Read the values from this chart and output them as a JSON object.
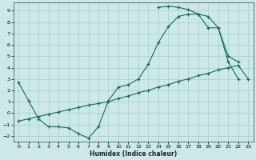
{
  "bg_color": "#cce8e8",
  "grid_color": "#aacccc",
  "line_color": "#1a6b5a",
  "xlabel": "Humidex (Indice chaleur)",
  "xlim": [
    -0.5,
    23.5
  ],
  "ylim": [
    -2.5,
    9.7
  ],
  "xticks": [
    0,
    1,
    2,
    3,
    4,
    5,
    6,
    7,
    8,
    9,
    10,
    11,
    12,
    13,
    14,
    15,
    16,
    17,
    18,
    19,
    20,
    21,
    22,
    23
  ],
  "yticks": [
    -2,
    -1,
    0,
    1,
    2,
    3,
    4,
    5,
    6,
    7,
    8,
    9
  ],
  "line1_x": [
    0,
    1,
    2,
    3,
    4,
    5,
    6,
    7,
    8,
    9,
    10,
    11,
    12,
    13,
    14,
    15,
    16,
    17,
    18,
    19,
    20,
    21,
    22
  ],
  "line1_y": [
    2.7,
    1.1,
    -0.5,
    -1.2,
    -1.2,
    -1.3,
    -1.8,
    -2.2,
    -1.2,
    1.1,
    2.3,
    2.5,
    3.0,
    4.3,
    6.2,
    7.6,
    8.5,
    8.7,
    8.7,
    8.5,
    7.5,
    4.5,
    3.0
  ],
  "line2_x": [
    14,
    15,
    16,
    17,
    18,
    19,
    20,
    21,
    22
  ],
  "line2_y": [
    9.3,
    9.4,
    9.3,
    9.1,
    8.7,
    7.5,
    7.5,
    5.0,
    4.5
  ],
  "line3_x": [
    0,
    1,
    2,
    3,
    4,
    5,
    6,
    7,
    8,
    9,
    10,
    11,
    12,
    13,
    14,
    15,
    16,
    17,
    18,
    19,
    20,
    21,
    22,
    23
  ],
  "line3_y": [
    -0.7,
    -0.5,
    -0.3,
    -0.1,
    0.1,
    0.3,
    0.5,
    0.7,
    0.85,
    1.0,
    1.3,
    1.5,
    1.8,
    2.0,
    2.3,
    2.5,
    2.8,
    3.0,
    3.3,
    3.5,
    3.8,
    4.0,
    4.2,
    3.0
  ]
}
